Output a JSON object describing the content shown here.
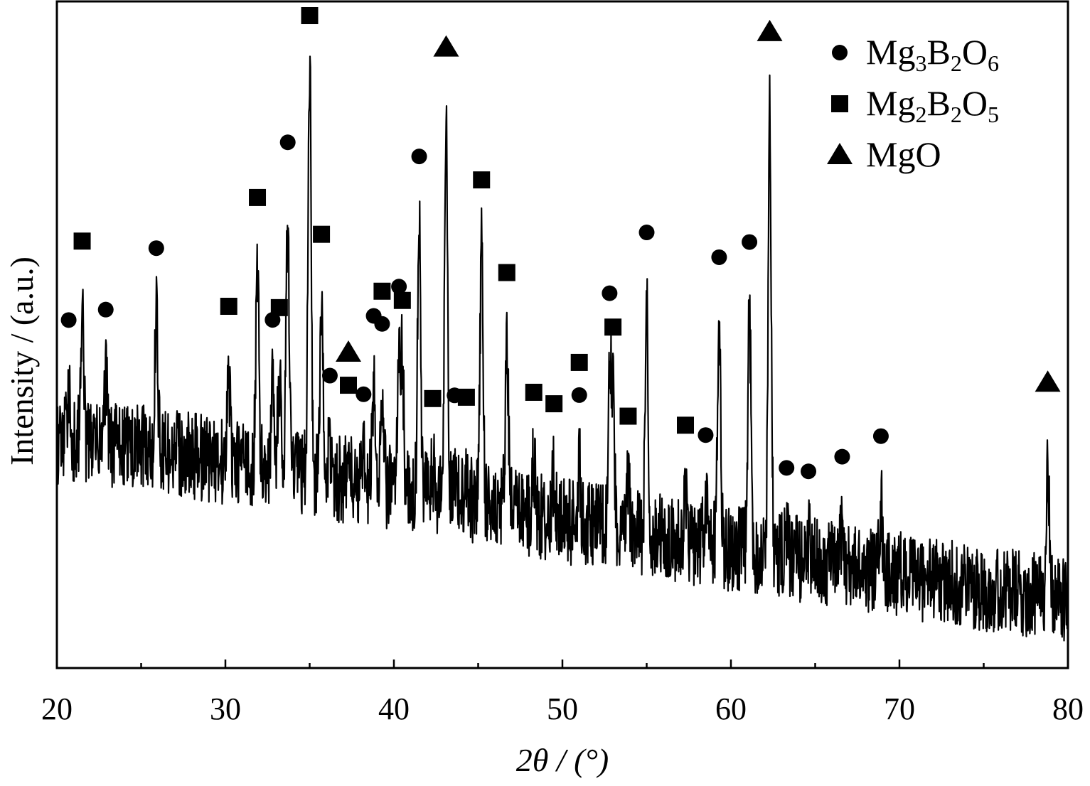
{
  "chart_data": {
    "type": "line",
    "title": "",
    "xlabel": "2θ / (°)",
    "ylabel": "Intensity / (a.u.)",
    "xlim": [
      20,
      80
    ],
    "ylim": [
      0,
      100
    ],
    "x_ticks": [
      "20",
      "30",
      "40",
      "50",
      "60",
      "70",
      "80"
    ],
    "y_ticks_shown": false,
    "grid": false,
    "legend_position": "top-right",
    "line_color": "#000000",
    "legend": [
      {
        "marker": "circle",
        "label": "Mg3B2O6",
        "parts": [
          [
            "Mg",
            "n"
          ],
          [
            "3",
            "sub"
          ],
          [
            "B",
            "n"
          ],
          [
            "2",
            "sub"
          ],
          [
            "O",
            "n"
          ],
          [
            "6",
            "sub"
          ]
        ]
      },
      {
        "marker": "square",
        "label": "Mg2B2O5",
        "parts": [
          [
            "Mg",
            "n"
          ],
          [
            "2",
            "sub"
          ],
          [
            "B",
            "n"
          ],
          [
            "2",
            "sub"
          ],
          [
            "O",
            "n"
          ],
          [
            "5",
            "sub"
          ]
        ]
      },
      {
        "marker": "triangle",
        "label": "MgO",
        "parts": [
          [
            "MgO",
            "n"
          ]
        ]
      }
    ],
    "baseline": [
      [
        20,
        34
      ],
      [
        25,
        33
      ],
      [
        30,
        31
      ],
      [
        35,
        29
      ],
      [
        40,
        27
      ],
      [
        45,
        25
      ],
      [
        50,
        22
      ],
      [
        55,
        20
      ],
      [
        60,
        18
      ],
      [
        65,
        16
      ],
      [
        70,
        14
      ],
      [
        75,
        12
      ],
      [
        80,
        10
      ]
    ],
    "peaks": [
      {
        "x": 20.7,
        "h": 8
      },
      {
        "x": 21.5,
        "h": 20
      },
      {
        "x": 22.9,
        "h": 10
      },
      {
        "x": 25.9,
        "h": 20
      },
      {
        "x": 30.2,
        "h": 13
      },
      {
        "x": 31.9,
        "h": 30
      },
      {
        "x": 32.8,
        "h": 12
      },
      {
        "x": 33.2,
        "h": 14
      },
      {
        "x": 33.7,
        "h": 39
      },
      {
        "x": 35.0,
        "h": 63
      },
      {
        "x": 35.7,
        "h": 26
      },
      {
        "x": 36.2,
        "h": 5
      },
      {
        "x": 37.3,
        "h": 4
      },
      {
        "x": 38.2,
        "h": 3
      },
      {
        "x": 38.8,
        "h": 15
      },
      {
        "x": 39.3,
        "h": 14
      },
      {
        "x": 40.3,
        "h": 20
      },
      {
        "x": 40.5,
        "h": 18
      },
      {
        "x": 41.5,
        "h": 40
      },
      {
        "x": 42.3,
        "h": 4
      },
      {
        "x": 43.1,
        "h": 57
      },
      {
        "x": 43.6,
        "h": 5
      },
      {
        "x": 44.3,
        "h": 5
      },
      {
        "x": 45.2,
        "h": 38
      },
      {
        "x": 46.7,
        "h": 25
      },
      {
        "x": 48.3,
        "h": 8
      },
      {
        "x": 49.5,
        "h": 7
      },
      {
        "x": 51.0,
        "h": 9
      },
      {
        "x": 52.8,
        "h": 25
      },
      {
        "x": 53.0,
        "h": 20
      },
      {
        "x": 53.9,
        "h": 7
      },
      {
        "x": 55.0,
        "h": 35
      },
      {
        "x": 57.3,
        "h": 7
      },
      {
        "x": 58.5,
        "h": 6
      },
      {
        "x": 59.3,
        "h": 33
      },
      {
        "x": 61.1,
        "h": 36
      },
      {
        "x": 62.3,
        "h": 68
      },
      {
        "x": 63.3,
        "h": 3
      },
      {
        "x": 64.6,
        "h": 3
      },
      {
        "x": 66.6,
        "h": 6
      },
      {
        "x": 68.9,
        "h": 10
      },
      {
        "x": 78.8,
        "h": 22
      }
    ],
    "series_markers": {
      "circle": [
        20.7,
        22.9,
        25.9,
        32.8,
        33.7,
        36.2,
        38.2,
        38.8,
        39.3,
        40.3,
        41.5,
        43.6,
        51.0,
        52.8,
        55.0,
        58.5,
        59.3,
        61.1,
        63.3,
        64.6,
        66.6,
        68.9
      ],
      "square": [
        21.5,
        30.2,
        31.9,
        33.2,
        35.0,
        35.7,
        37.3,
        39.3,
        40.5,
        42.3,
        44.3,
        45.2,
        46.7,
        48.3,
        49.5,
        51.0,
        53.0,
        53.9,
        57.3
      ],
      "triangle": [
        37.3,
        43.1,
        62.3,
        78.8
      ]
    }
  }
}
